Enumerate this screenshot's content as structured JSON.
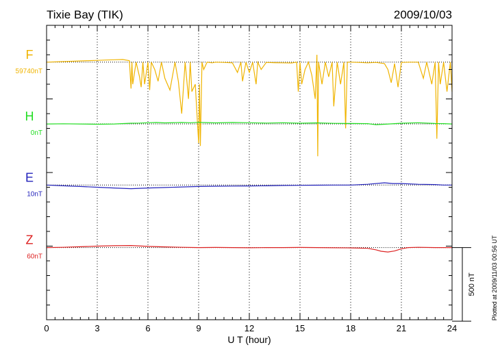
{
  "header": {
    "station": "Tixie Bay (TIK)",
    "date": "2009/10/03"
  },
  "footer": {
    "plotted_note": "Plotted at 2009/11/03 00:56 UT"
  },
  "chart_data": {
    "type": "line",
    "title": "",
    "xlabel": "U T (hour)",
    "ylabel": "",
    "xlim": [
      0,
      24
    ],
    "xticks": [
      0,
      3,
      6,
      9,
      12,
      15,
      18,
      21,
      24
    ],
    "xtick_labels": [
      "0",
      "3",
      "6",
      "9",
      "12",
      "15",
      "18",
      "21",
      "24"
    ],
    "vertical_grid_hours": [
      3,
      6,
      9,
      12,
      15,
      18,
      21
    ],
    "ylim": [
      0,
      2000
    ],
    "y_unit": "nT",
    "scale_bar": {
      "value": 500,
      "label": "500 nT"
    },
    "series": [
      {
        "name": "F",
        "base_label": "59740nT",
        "color": "#F0B400",
        "baseline": 1750,
        "x": [
          0,
          0.5,
          1,
          1.5,
          2,
          2.5,
          3,
          3.5,
          4,
          4.5,
          4.9,
          5.0,
          5.05,
          5.1,
          5.3,
          5.5,
          5.6,
          5.7,
          5.8,
          6.0,
          6.1,
          6.2,
          6.4,
          6.6,
          6.8,
          7.0,
          7.3,
          7.6,
          7.8,
          8.0,
          8.2,
          8.4,
          8.5,
          8.6,
          8.8,
          9.0,
          9.05,
          9.1,
          9.2,
          9.3,
          9.5,
          9.8,
          10.0,
          10.5,
          11.0,
          11.3,
          11.5,
          11.6,
          11.8,
          12.0,
          12.2,
          12.4,
          12.5,
          12.7,
          13.0,
          13.5,
          14.0,
          14.5,
          14.8,
          14.9,
          15.0,
          15.1,
          15.3,
          15.5,
          15.7,
          15.9,
          16.0,
          16.05,
          16.1,
          16.3,
          16.5,
          16.7,
          16.9,
          17.0,
          17.2,
          17.4,
          17.6,
          17.7,
          17.8,
          18.0,
          18.5,
          19.0,
          19.5,
          20.0,
          20.2,
          20.4,
          20.6,
          20.8,
          21.0,
          21.5,
          22.0,
          22.3,
          22.5,
          22.6,
          22.8,
          23.0,
          23.1,
          23.2,
          23.3,
          23.5,
          23.6,
          23.7,
          23.9,
          24.0
        ],
        "y": [
          1750,
          1752,
          1754,
          1756,
          1758,
          1760,
          1762,
          1764,
          1766,
          1768,
          1760,
          1570,
          1750,
          1600,
          1750,
          1650,
          1580,
          1750,
          1600,
          1750,
          1560,
          1750,
          1700,
          1620,
          1750,
          1640,
          1560,
          1750,
          1620,
          1400,
          1750,
          1500,
          1750,
          1550,
          1600,
          1200,
          1600,
          1180,
          1750,
          1700,
          1750,
          1745,
          1750,
          1748,
          1745,
          1680,
          1750,
          1620,
          1750,
          1680,
          1750,
          1600,
          1750,
          1700,
          1748,
          1746,
          1745,
          1744,
          1750,
          1550,
          1750,
          1600,
          1700,
          1750,
          1660,
          1500,
          1800,
          1110,
          1750,
          1600,
          1750,
          1650,
          1750,
          1450,
          1750,
          1600,
          1750,
          1300,
          1750,
          1750,
          1748,
          1745,
          1748,
          1740,
          1700,
          1610,
          1740,
          1580,
          1748,
          1750,
          1750,
          1640,
          1750,
          1700,
          1600,
          1750,
          1230,
          1750,
          1600,
          1750,
          1650,
          1550,
          1750,
          1550
        ]
      },
      {
        "name": "H",
        "base_label": "0nT",
        "color": "#22DD22",
        "baseline": 1330,
        "x": [
          0,
          1,
          2,
          3,
          4,
          5,
          5.5,
          6,
          6.5,
          7,
          8,
          8.5,
          9,
          9.5,
          10,
          11,
          12,
          13,
          14,
          15,
          16,
          17,
          18,
          19,
          19.5,
          20,
          21,
          22,
          23,
          23.5,
          24
        ],
        "y": [
          1330,
          1331,
          1330,
          1328,
          1330,
          1335,
          1336,
          1338,
          1340,
          1337,
          1340,
          1338,
          1341,
          1339,
          1337,
          1340,
          1338,
          1336,
          1338,
          1335,
          1337,
          1334,
          1333,
          1332,
          1325,
          1328,
          1335,
          1338,
          1333,
          1332,
          1330
        ]
      },
      {
        "name": "E",
        "base_label": "10nT",
        "color": "#2222BB",
        "baseline": 915,
        "x": [
          0,
          1,
          2,
          3,
          4,
          5,
          6,
          7,
          8,
          9,
          10,
          11,
          12,
          13,
          14,
          15,
          16,
          17,
          18,
          19,
          20,
          20.5,
          21,
          22,
          23,
          23.5,
          24
        ],
        "y": [
          915,
          910,
          905,
          900,
          895,
          890,
          895,
          898,
          902,
          905,
          907,
          908,
          909,
          910,
          912,
          913,
          914,
          915,
          915,
          920,
          930,
          925,
          925,
          920,
          918,
          915,
          915
        ]
      },
      {
        "name": "Z",
        "base_label": "60nT",
        "color": "#DD2222",
        "baseline": 490,
        "x": [
          0,
          1,
          2,
          3,
          4,
          5,
          6,
          7,
          8,
          9,
          10,
          11,
          12,
          13,
          14,
          15,
          16,
          17,
          18,
          19,
          19.5,
          19.8,
          20.2,
          20.6,
          21.0,
          21.4,
          22,
          23,
          24
        ],
        "y": [
          490,
          492,
          496,
          500,
          503,
          504,
          498,
          495,
          492,
          490,
          491,
          490,
          489,
          490,
          490,
          491,
          490,
          489,
          488,
          485,
          475,
          465,
          460,
          467,
          482,
          490,
          492,
          490,
          490
        ]
      }
    ]
  }
}
